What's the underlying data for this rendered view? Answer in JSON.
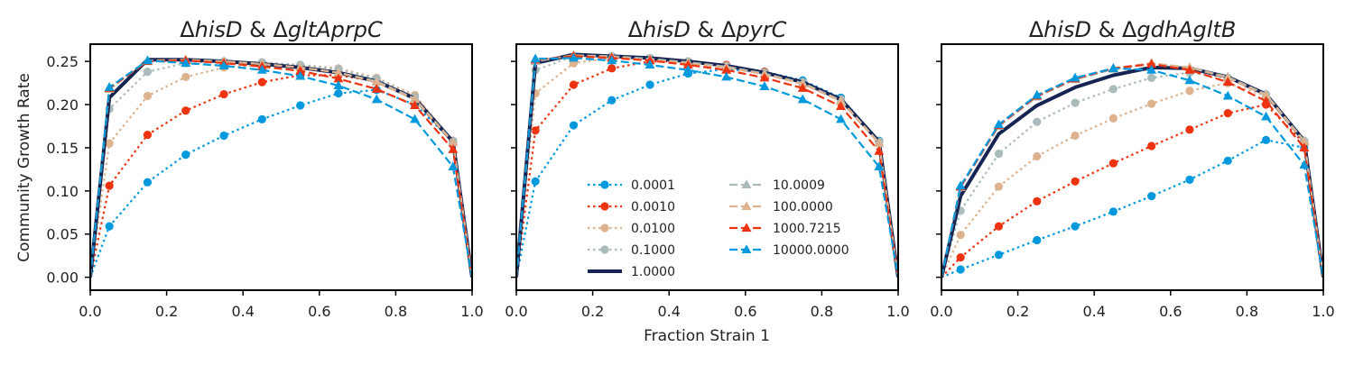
{
  "figure": {
    "ylabel": "Community Growth Rate",
    "xlabel": "Fraction Strain 1"
  },
  "legend": {
    "placement": "lower-center of middle panel",
    "columns": 2
  },
  "chart_data": [
    {
      "type": "line",
      "title_parts": [
        "Δ",
        "hisD",
        " & Δ",
        "gltAprpC"
      ],
      "xlim": [
        0.0,
        1.0
      ],
      "ylim": [
        -0.015,
        0.27
      ],
      "xticks": [
        "0.0",
        "0.2",
        "0.4",
        "0.6",
        "0.8",
        "1.0"
      ],
      "yticks": [
        "0.00",
        "0.05",
        "0.10",
        "0.15",
        "0.20",
        "0.25"
      ],
      "show_y_tick_labels": true,
      "x": [
        0.0,
        0.05,
        0.15,
        0.25,
        0.35,
        0.45,
        0.55,
        0.65,
        0.75,
        0.85,
        0.95,
        1.0
      ],
      "series": [
        {
          "name": "0.0001",
          "color": "#0099DD",
          "dash": "dotted",
          "marker": "circle",
          "values": [
            0,
            0.059,
            0.11,
            0.142,
            0.164,
            0.183,
            0.199,
            0.213,
            0.217,
            0.2,
            0.157,
            0
          ]
        },
        {
          "name": "0.0010",
          "color": "#EE3311",
          "dash": "dotted",
          "marker": "circle",
          "values": [
            0,
            0.106,
            0.165,
            0.193,
            0.212,
            0.226,
            0.234,
            0.234,
            0.227,
            0.209,
            0.158,
            0
          ]
        },
        {
          "name": "0.0100",
          "color": "#DDB28E",
          "dash": "dotted",
          "marker": "circle",
          "values": [
            0,
            0.155,
            0.21,
            0.232,
            0.243,
            0.246,
            0.246,
            0.242,
            0.231,
            0.211,
            0.158,
            0
          ]
        },
        {
          "name": "0.1000",
          "color": "#AABBBB",
          "dash": "dotted",
          "marker": "circle",
          "values": [
            0,
            0.195,
            0.238,
            0.248,
            0.25,
            0.249,
            0.246,
            0.241,
            0.23,
            0.209,
            0.158,
            0
          ]
        },
        {
          "name": "1.0000",
          "color": "#162452",
          "dash": "solid",
          "marker": "none",
          "values": [
            0,
            0.208,
            0.252,
            0.252,
            0.25,
            0.247,
            0.243,
            0.237,
            0.227,
            0.207,
            0.157,
            0
          ]
        },
        {
          "name": "10.0009",
          "color": "#AABBBB",
          "dash": "dashed",
          "marker": "triangle",
          "values": [
            0,
            0.218,
            0.251,
            0.251,
            0.25,
            0.247,
            0.243,
            0.237,
            0.227,
            0.207,
            0.157,
            0
          ]
        },
        {
          "name": "100.0000",
          "color": "#DDB28E",
          "dash": "dashed",
          "marker": "triangle",
          "values": [
            0,
            0.218,
            0.251,
            0.252,
            0.25,
            0.247,
            0.243,
            0.237,
            0.226,
            0.206,
            0.156,
            0
          ]
        },
        {
          "name": "1000.7215",
          "color": "#EE3311",
          "dash": "dashed",
          "marker": "triangle",
          "values": [
            0,
            0.219,
            0.25,
            0.251,
            0.248,
            0.244,
            0.239,
            0.23,
            0.218,
            0.199,
            0.148,
            0
          ]
        },
        {
          "name": "10000.0000",
          "color": "#0099DD",
          "dash": "dashed",
          "marker": "triangle",
          "values": [
            0,
            0.22,
            0.251,
            0.248,
            0.245,
            0.24,
            0.233,
            0.222,
            0.206,
            0.183,
            0.128,
            0
          ]
        }
      ]
    },
    {
      "type": "line",
      "title_parts": [
        "Δ",
        "hisD",
        " & Δ",
        "pyrC"
      ],
      "xlim": [
        0.0,
        1.0
      ],
      "ylim": [
        -0.015,
        0.27
      ],
      "xticks": [
        "0.0",
        "0.2",
        "0.4",
        "0.6",
        "0.8",
        "1.0"
      ],
      "yticks": [
        "0.00",
        "0.05",
        "0.10",
        "0.15",
        "0.20",
        "0.25"
      ],
      "show_y_tick_labels": false,
      "x": [
        0.0,
        0.05,
        0.15,
        0.25,
        0.35,
        0.45,
        0.55,
        0.65,
        0.75,
        0.85,
        0.95,
        1.0
      ],
      "series": [
        {
          "name": "0.0001",
          "color": "#0099DD",
          "dash": "dotted",
          "marker": "circle",
          "values": [
            0,
            0.111,
            0.176,
            0.205,
            0.223,
            0.236,
            0.241,
            0.238,
            0.228,
            0.208,
            0.158,
            0
          ]
        },
        {
          "name": "0.0010",
          "color": "#EE3311",
          "dash": "dotted",
          "marker": "circle",
          "values": [
            0,
            0.17,
            0.223,
            0.242,
            0.25,
            0.25,
            0.246,
            0.238,
            0.226,
            0.206,
            0.157,
            0
          ]
        },
        {
          "name": "0.0100",
          "color": "#DDB28E",
          "dash": "dotted",
          "marker": "circle",
          "values": [
            0,
            0.213,
            0.248,
            0.254,
            0.253,
            0.25,
            0.245,
            0.237,
            0.226,
            0.206,
            0.157,
            0
          ]
        },
        {
          "name": "0.1000",
          "color": "#AABBBB",
          "dash": "dotted",
          "marker": "circle",
          "values": [
            0,
            0.24,
            0.256,
            0.256,
            0.254,
            0.25,
            0.245,
            0.237,
            0.226,
            0.206,
            0.157,
            0
          ]
        },
        {
          "name": "1.0000",
          "color": "#162452",
          "dash": "solid",
          "marker": "none",
          "values": [
            0,
            0.248,
            0.258,
            0.256,
            0.254,
            0.25,
            0.245,
            0.237,
            0.226,
            0.206,
            0.157,
            0
          ]
        },
        {
          "name": "10.0009",
          "color": "#AABBBB",
          "dash": "dashed",
          "marker": "triangle",
          "values": [
            0,
            0.25,
            0.257,
            0.256,
            0.253,
            0.249,
            0.244,
            0.236,
            0.225,
            0.205,
            0.156,
            0
          ]
        },
        {
          "name": "100.0000",
          "color": "#DDB28E",
          "dash": "dashed",
          "marker": "triangle",
          "values": [
            0,
            0.251,
            0.257,
            0.255,
            0.252,
            0.248,
            0.243,
            0.235,
            0.224,
            0.204,
            0.155,
            0
          ]
        },
        {
          "name": "1000.7215",
          "color": "#EE3311",
          "dash": "dashed",
          "marker": "triangle",
          "values": [
            0,
            0.252,
            0.256,
            0.254,
            0.251,
            0.246,
            0.24,
            0.231,
            0.219,
            0.198,
            0.146,
            0
          ]
        },
        {
          "name": "10000.0000",
          "color": "#0099DD",
          "dash": "dashed",
          "marker": "triangle",
          "values": [
            0,
            0.253,
            0.254,
            0.251,
            0.246,
            0.24,
            0.232,
            0.221,
            0.206,
            0.183,
            0.128,
            0
          ]
        }
      ]
    },
    {
      "type": "line",
      "title_parts": [
        "Δ",
        "hisD",
        " & Δ",
        "gdhAgltB"
      ],
      "xlim": [
        0.0,
        1.0
      ],
      "ylim": [
        -0.015,
        0.27
      ],
      "xticks": [
        "0.0",
        "0.2",
        "0.4",
        "0.6",
        "0.8",
        "1.0"
      ],
      "yticks": [
        "0.00",
        "0.05",
        "0.10",
        "0.15",
        "0.20",
        "0.25"
      ],
      "show_y_tick_labels": false,
      "x": [
        0.0,
        0.05,
        0.15,
        0.25,
        0.35,
        0.45,
        0.55,
        0.65,
        0.75,
        0.85,
        0.95,
        1.0
      ],
      "series": [
        {
          "name": "0.0001",
          "color": "#0099DD",
          "dash": "dotted",
          "marker": "circle",
          "values": [
            0,
            0.009,
            0.026,
            0.043,
            0.059,
            0.076,
            0.094,
            0.113,
            0.135,
            0.159,
            0.15,
            0
          ]
        },
        {
          "name": "0.0010",
          "color": "#EE3311",
          "dash": "dotted",
          "marker": "circle",
          "values": [
            0,
            0.023,
            0.059,
            0.088,
            0.111,
            0.132,
            0.152,
            0.171,
            0.19,
            0.2,
            0.155,
            0
          ]
        },
        {
          "name": "0.0100",
          "color": "#DDB28E",
          "dash": "dotted",
          "marker": "circle",
          "values": [
            0,
            0.049,
            0.105,
            0.14,
            0.164,
            0.184,
            0.201,
            0.216,
            0.225,
            0.21,
            0.157,
            0
          ]
        },
        {
          "name": "0.1000",
          "color": "#AABBBB",
          "dash": "dotted",
          "marker": "circle",
          "values": [
            0,
            0.077,
            0.143,
            0.18,
            0.202,
            0.218,
            0.231,
            0.237,
            0.231,
            0.212,
            0.158,
            0
          ]
        },
        {
          "name": "1.0000",
          "color": "#162452",
          "dash": "solid",
          "marker": "none",
          "values": [
            0,
            0.094,
            0.166,
            0.199,
            0.22,
            0.234,
            0.243,
            0.242,
            0.232,
            0.212,
            0.158,
            0
          ]
        },
        {
          "name": "10.0009",
          "color": "#AABBBB",
          "dash": "dashed",
          "marker": "triangle",
          "values": [
            0,
            0.104,
            0.175,
            0.209,
            0.229,
            0.241,
            0.247,
            0.243,
            0.232,
            0.212,
            0.158,
            0
          ]
        },
        {
          "name": "100.0000",
          "color": "#DDB28E",
          "dash": "dashed",
          "marker": "triangle",
          "values": [
            0,
            0.105,
            0.176,
            0.21,
            0.23,
            0.242,
            0.248,
            0.243,
            0.231,
            0.211,
            0.157,
            0
          ]
        },
        {
          "name": "1000.7215",
          "color": "#EE3311",
          "dash": "dashed",
          "marker": "triangle",
          "values": [
            0,
            0.105,
            0.176,
            0.21,
            0.23,
            0.242,
            0.247,
            0.24,
            0.226,
            0.204,
            0.15,
            0
          ]
        },
        {
          "name": "10000.0000",
          "color": "#0099DD",
          "dash": "dashed",
          "marker": "triangle",
          "values": [
            0,
            0.106,
            0.177,
            0.211,
            0.231,
            0.242,
            0.24,
            0.228,
            0.21,
            0.186,
            0.13,
            0
          ]
        }
      ]
    }
  ]
}
